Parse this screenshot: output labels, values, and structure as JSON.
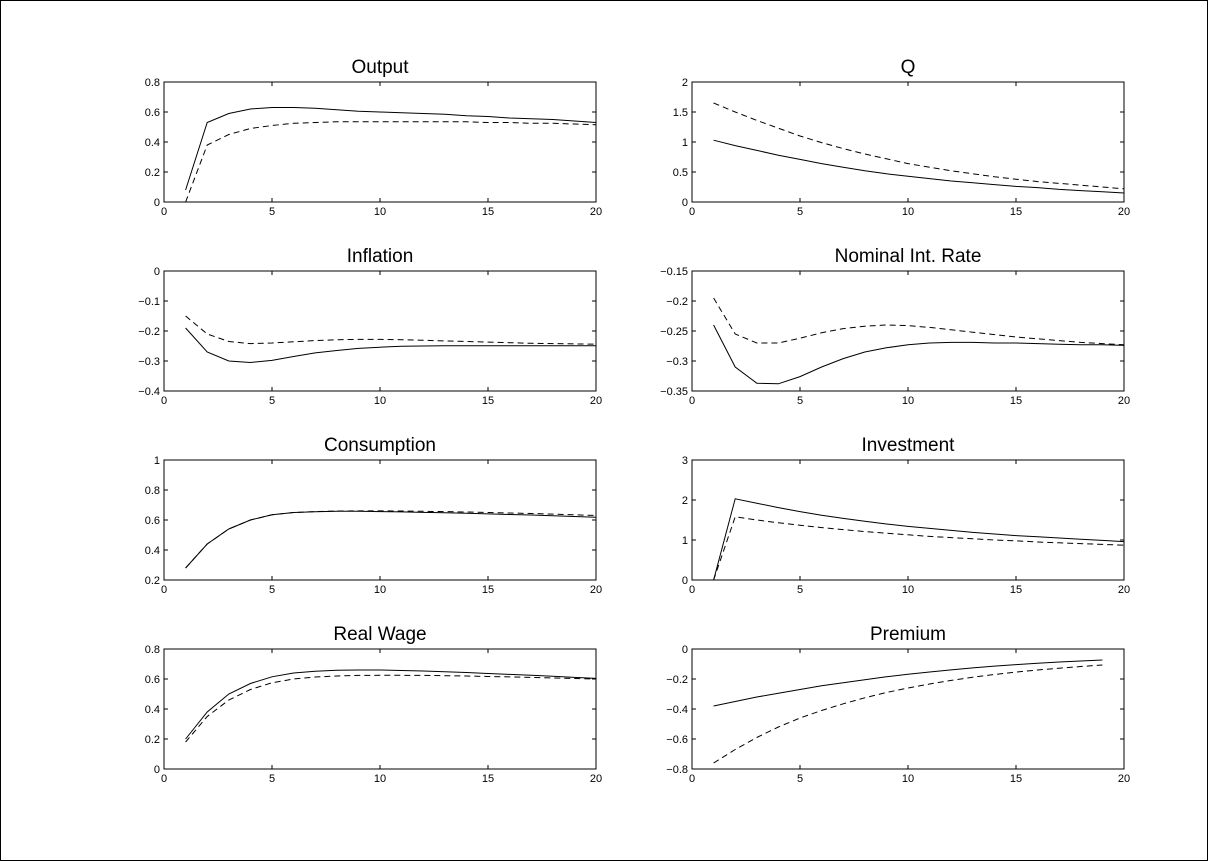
{
  "chart_data": [
    {
      "type": "line",
      "title": "Output",
      "xlim": [
        0,
        20
      ],
      "ylim": [
        0,
        0.8
      ],
      "xticks": [
        0,
        5,
        10,
        15,
        20
      ],
      "yticks": [
        0,
        0.2,
        0.4,
        0.6,
        0.8
      ],
      "ytick_labels": [
        "0",
        "0.2",
        "0.4",
        "0.6",
        "0.8"
      ],
      "x": [
        1,
        2,
        3,
        4,
        5,
        6,
        7,
        8,
        9,
        10,
        11,
        12,
        13,
        14,
        15,
        16,
        17,
        18,
        19,
        20
      ],
      "series": [
        {
          "style": "solid",
          "values": [
            0.08,
            0.53,
            0.59,
            0.62,
            0.63,
            0.63,
            0.625,
            0.615,
            0.605,
            0.6,
            0.595,
            0.59,
            0.585,
            0.575,
            0.57,
            0.56,
            0.555,
            0.55,
            0.54,
            0.53
          ]
        },
        {
          "style": "dashed",
          "values": [
            0.0,
            0.38,
            0.45,
            0.49,
            0.51,
            0.525,
            0.53,
            0.535,
            0.535,
            0.535,
            0.535,
            0.535,
            0.535,
            0.535,
            0.53,
            0.53,
            0.525,
            0.525,
            0.52,
            0.515
          ]
        }
      ]
    },
    {
      "type": "line",
      "title": "Q",
      "xlim": [
        0,
        20
      ],
      "ylim": [
        0,
        2
      ],
      "xticks": [
        0,
        5,
        10,
        15,
        20
      ],
      "yticks": [
        0,
        0.5,
        1,
        1.5,
        2
      ],
      "ytick_labels": [
        "0",
        "0.5",
        "1",
        "1.5",
        "2"
      ],
      "x": [
        1,
        2,
        3,
        4,
        5,
        6,
        7,
        8,
        9,
        10,
        11,
        12,
        13,
        14,
        15,
        16,
        17,
        18,
        19,
        20
      ],
      "series": [
        {
          "style": "solid",
          "values": [
            1.03,
            0.94,
            0.86,
            0.78,
            0.71,
            0.64,
            0.58,
            0.52,
            0.47,
            0.43,
            0.39,
            0.35,
            0.32,
            0.29,
            0.26,
            0.24,
            0.21,
            0.19,
            0.17,
            0.15
          ]
        },
        {
          "style": "dashed",
          "values": [
            1.65,
            1.5,
            1.36,
            1.23,
            1.1,
            0.99,
            0.89,
            0.8,
            0.72,
            0.64,
            0.58,
            0.52,
            0.47,
            0.42,
            0.38,
            0.34,
            0.31,
            0.28,
            0.25,
            0.22
          ]
        }
      ]
    },
    {
      "type": "line",
      "title": "Inflation",
      "xlim": [
        0,
        20
      ],
      "ylim": [
        -0.4,
        0
      ],
      "xticks": [
        0,
        5,
        10,
        15,
        20
      ],
      "yticks": [
        -0.4,
        -0.3,
        -0.2,
        -0.1,
        0
      ],
      "ytick_labels": [
        "−0.4",
        "−0.3",
        "−0.2",
        "−0.1",
        "0"
      ],
      "x": [
        1,
        2,
        3,
        4,
        5,
        6,
        7,
        8,
        9,
        10,
        11,
        12,
        13,
        14,
        15,
        16,
        17,
        18,
        19,
        20
      ],
      "series": [
        {
          "style": "solid",
          "values": [
            -0.19,
            -0.27,
            -0.3,
            -0.305,
            -0.298,
            -0.285,
            -0.273,
            -0.265,
            -0.258,
            -0.254,
            -0.251,
            -0.25,
            -0.249,
            -0.249,
            -0.249,
            -0.249,
            -0.249,
            -0.249,
            -0.249,
            -0.249
          ]
        },
        {
          "style": "dashed",
          "values": [
            -0.15,
            -0.21,
            -0.235,
            -0.242,
            -0.24,
            -0.236,
            -0.232,
            -0.229,
            -0.228,
            -0.228,
            -0.229,
            -0.231,
            -0.233,
            -0.235,
            -0.237,
            -0.239,
            -0.241,
            -0.242,
            -0.243,
            -0.244
          ]
        }
      ]
    },
    {
      "type": "line",
      "title": "Nominal Int. Rate",
      "xlim": [
        0,
        20
      ],
      "ylim": [
        -0.35,
        -0.15
      ],
      "xticks": [
        0,
        5,
        10,
        15,
        20
      ],
      "yticks": [
        -0.35,
        -0.3,
        -0.25,
        -0.2,
        -0.15
      ],
      "ytick_labels": [
        "−0.35",
        "−0.3",
        "−0.25",
        "−0.2",
        "−0.15"
      ],
      "x": [
        1,
        2,
        3,
        4,
        5,
        6,
        7,
        8,
        9,
        10,
        11,
        12,
        13,
        14,
        15,
        16,
        17,
        18,
        19,
        20
      ],
      "series": [
        {
          "style": "solid",
          "values": [
            -0.24,
            -0.31,
            -0.337,
            -0.338,
            -0.326,
            -0.31,
            -0.296,
            -0.285,
            -0.278,
            -0.273,
            -0.27,
            -0.269,
            -0.269,
            -0.27,
            -0.27,
            -0.271,
            -0.272,
            -0.273,
            -0.273,
            -0.274
          ]
        },
        {
          "style": "dashed",
          "values": [
            -0.195,
            -0.255,
            -0.27,
            -0.27,
            -0.262,
            -0.253,
            -0.246,
            -0.242,
            -0.24,
            -0.241,
            -0.244,
            -0.248,
            -0.252,
            -0.256,
            -0.26,
            -0.263,
            -0.266,
            -0.269,
            -0.271,
            -0.273
          ]
        }
      ]
    },
    {
      "type": "line",
      "title": "Consumption",
      "xlim": [
        0,
        20
      ],
      "ylim": [
        0.2,
        1
      ],
      "xticks": [
        0,
        5,
        10,
        15,
        20
      ],
      "yticks": [
        0.2,
        0.4,
        0.6,
        0.8,
        1
      ],
      "ytick_labels": [
        "0.2",
        "0.4",
        "0.6",
        "0.8",
        "1"
      ],
      "x": [
        1,
        2,
        3,
        4,
        5,
        6,
        7,
        8,
        9,
        10,
        11,
        12,
        13,
        14,
        15,
        16,
        17,
        18,
        19,
        20
      ],
      "series": [
        {
          "style": "solid",
          "values": [
            0.28,
            0.44,
            0.54,
            0.6,
            0.635,
            0.65,
            0.655,
            0.658,
            0.658,
            0.656,
            0.654,
            0.651,
            0.648,
            0.645,
            0.641,
            0.637,
            0.633,
            0.628,
            0.623,
            0.618
          ]
        },
        {
          "style": "dashed",
          "values": [
            0.28,
            0.44,
            0.54,
            0.6,
            0.635,
            0.65,
            0.656,
            0.66,
            0.661,
            0.661,
            0.66,
            0.658,
            0.656,
            0.653,
            0.65,
            0.647,
            0.643,
            0.639,
            0.635,
            0.63
          ]
        }
      ]
    },
    {
      "type": "line",
      "title": "Investment",
      "xlim": [
        0,
        20
      ],
      "ylim": [
        0,
        3
      ],
      "xticks": [
        0,
        5,
        10,
        15,
        20
      ],
      "yticks": [
        0,
        1,
        2,
        3
      ],
      "ytick_labels": [
        "0",
        "1",
        "2",
        "3"
      ],
      "x": [
        1,
        2,
        3,
        4,
        5,
        6,
        7,
        8,
        9,
        10,
        11,
        12,
        13,
        14,
        15,
        16,
        17,
        18,
        19,
        20
      ],
      "series": [
        {
          "style": "solid",
          "values": [
            0.0,
            2.03,
            1.92,
            1.81,
            1.71,
            1.62,
            1.54,
            1.47,
            1.4,
            1.34,
            1.29,
            1.24,
            1.19,
            1.15,
            1.11,
            1.08,
            1.05,
            1.02,
            0.99,
            0.96
          ]
        },
        {
          "style": "dashed",
          "values": [
            0.0,
            1.58,
            1.5,
            1.43,
            1.37,
            1.31,
            1.26,
            1.21,
            1.17,
            1.13,
            1.09,
            1.06,
            1.03,
            1.0,
            0.98,
            0.95,
            0.93,
            0.91,
            0.89,
            0.87
          ]
        }
      ]
    },
    {
      "type": "line",
      "title": "Real Wage",
      "xlim": [
        0,
        20
      ],
      "ylim": [
        0,
        0.8
      ],
      "xticks": [
        0,
        5,
        10,
        15,
        20
      ],
      "yticks": [
        0,
        0.2,
        0.4,
        0.6,
        0.8
      ],
      "ytick_labels": [
        "0",
        "0.2",
        "0.4",
        "0.6",
        "0.8"
      ],
      "x": [
        1,
        2,
        3,
        4,
        5,
        6,
        7,
        8,
        9,
        10,
        11,
        12,
        13,
        14,
        15,
        16,
        17,
        18,
        19,
        20
      ],
      "series": [
        {
          "style": "solid",
          "values": [
            0.2,
            0.38,
            0.5,
            0.57,
            0.615,
            0.64,
            0.652,
            0.658,
            0.66,
            0.66,
            0.657,
            0.653,
            0.648,
            0.643,
            0.637,
            0.631,
            0.625,
            0.618,
            0.611,
            0.604
          ]
        },
        {
          "style": "dashed",
          "values": [
            0.18,
            0.35,
            0.46,
            0.53,
            0.575,
            0.6,
            0.613,
            0.62,
            0.624,
            0.625,
            0.625,
            0.624,
            0.622,
            0.62,
            0.617,
            0.614,
            0.611,
            0.607,
            0.603,
            0.6
          ]
        }
      ]
    },
    {
      "type": "line",
      "title": "Premium",
      "xlim": [
        0,
        20
      ],
      "ylim": [
        -0.8,
        0
      ],
      "xticks": [
        0,
        5,
        10,
        15,
        20
      ],
      "yticks": [
        -0.8,
        -0.6,
        -0.4,
        -0.2,
        0
      ],
      "ytick_labels": [
        "−0.8",
        "−0.6",
        "−0.4",
        "−0.2",
        "0"
      ],
      "x": [
        1,
        2,
        3,
        4,
        5,
        6,
        7,
        8,
        9,
        10,
        11,
        12,
        13,
        14,
        15,
        16,
        17,
        18,
        19
      ],
      "series": [
        {
          "style": "solid",
          "values": [
            -0.38,
            -0.35,
            -0.32,
            -0.295,
            -0.27,
            -0.245,
            -0.225,
            -0.205,
            -0.185,
            -0.168,
            -0.153,
            -0.139,
            -0.126,
            -0.114,
            -0.104,
            -0.095,
            -0.087,
            -0.08,
            -0.073
          ]
        },
        {
          "style": "dashed",
          "values": [
            -0.76,
            -0.67,
            -0.59,
            -0.52,
            -0.46,
            -0.41,
            -0.365,
            -0.325,
            -0.29,
            -0.26,
            -0.233,
            -0.209,
            -0.188,
            -0.17,
            -0.154,
            -0.14,
            -0.128,
            -0.117,
            -0.107
          ]
        }
      ]
    }
  ]
}
